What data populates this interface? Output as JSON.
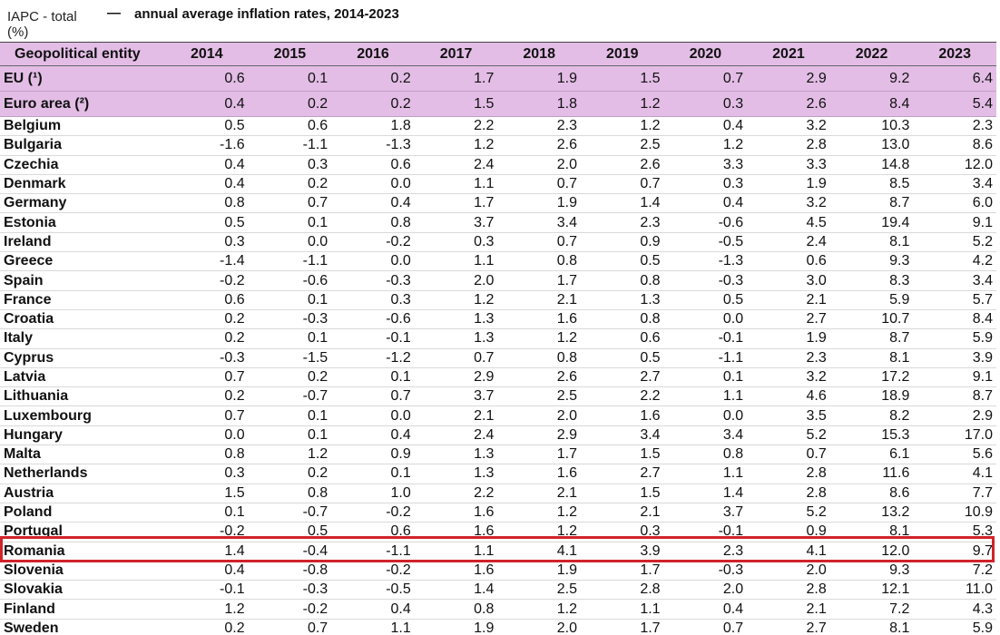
{
  "header": {
    "indicator": "IAPC - total (%)",
    "dash": "—",
    "title": "annual average inflation rates, 2014-2023"
  },
  "table": {
    "entity_header": "Geopolitical  entity",
    "years": [
      "2014",
      "2015",
      "2016",
      "2017",
      "2018",
      "2019",
      "2020",
      "2021",
      "2022",
      "2023"
    ],
    "rows": [
      {
        "name": "EU (¹)",
        "aggregate": true,
        "values": [
          "0.6",
          "0.1",
          "0.2",
          "1.7",
          "1.9",
          "1.5",
          "0.7",
          "2.9",
          "9.2",
          "6.4"
        ]
      },
      {
        "name": "Euro area (²)",
        "aggregate": true,
        "values": [
          "0.4",
          "0.2",
          "0.2",
          "1.5",
          "1.8",
          "1.2",
          "0.3",
          "2.6",
          "8.4",
          "5.4"
        ]
      },
      {
        "name": "Belgium",
        "values": [
          "0.5",
          "0.6",
          "1.8",
          "2.2",
          "2.3",
          "1.2",
          "0.4",
          "3.2",
          "10.3",
          "2.3"
        ]
      },
      {
        "name": "Bulgaria",
        "values": [
          "-1.6",
          "-1.1",
          "-1.3",
          "1.2",
          "2.6",
          "2.5",
          "1.2",
          "2.8",
          "13.0",
          "8.6"
        ]
      },
      {
        "name": "Czechia",
        "values": [
          "0.4",
          "0.3",
          "0.6",
          "2.4",
          "2.0",
          "2.6",
          "3.3",
          "3.3",
          "14.8",
          "12.0"
        ]
      },
      {
        "name": "Denmark",
        "values": [
          "0.4",
          "0.2",
          "0.0",
          "1.1",
          "0.7",
          "0.7",
          "0.3",
          "1.9",
          "8.5",
          "3.4"
        ]
      },
      {
        "name": "Germany",
        "values": [
          "0.8",
          "0.7",
          "0.4",
          "1.7",
          "1.9",
          "1.4",
          "0.4",
          "3.2",
          "8.7",
          "6.0"
        ]
      },
      {
        "name": "Estonia",
        "values": [
          "0.5",
          "0.1",
          "0.8",
          "3.7",
          "3.4",
          "2.3",
          "-0.6",
          "4.5",
          "19.4",
          "9.1"
        ]
      },
      {
        "name": "Ireland",
        "values": [
          "0.3",
          "0.0",
          "-0.2",
          "0.3",
          "0.7",
          "0.9",
          "-0.5",
          "2.4",
          "8.1",
          "5.2"
        ]
      },
      {
        "name": "Greece",
        "values": [
          "-1.4",
          "-1.1",
          "0.0",
          "1.1",
          "0.8",
          "0.5",
          "-1.3",
          "0.6",
          "9.3",
          "4.2"
        ]
      },
      {
        "name": "Spain",
        "values": [
          "-0.2",
          "-0.6",
          "-0.3",
          "2.0",
          "1.7",
          "0.8",
          "-0.3",
          "3.0",
          "8.3",
          "3.4"
        ]
      },
      {
        "name": "France",
        "values": [
          "0.6",
          "0.1",
          "0.3",
          "1.2",
          "2.1",
          "1.3",
          "0.5",
          "2.1",
          "5.9",
          "5.7"
        ]
      },
      {
        "name": "Croatia",
        "values": [
          "0.2",
          "-0.3",
          "-0.6",
          "1.3",
          "1.6",
          "0.8",
          "0.0",
          "2.7",
          "10.7",
          "8.4"
        ]
      },
      {
        "name": "Italy",
        "values": [
          "0.2",
          "0.1",
          "-0.1",
          "1.3",
          "1.2",
          "0.6",
          "-0.1",
          "1.9",
          "8.7",
          "5.9"
        ]
      },
      {
        "name": "Cyprus",
        "values": [
          "-0.3",
          "-1.5",
          "-1.2",
          "0.7",
          "0.8",
          "0.5",
          "-1.1",
          "2.3",
          "8.1",
          "3.9"
        ]
      },
      {
        "name": "Latvia",
        "values": [
          "0.7",
          "0.2",
          "0.1",
          "2.9",
          "2.6",
          "2.7",
          "0.1",
          "3.2",
          "17.2",
          "9.1"
        ]
      },
      {
        "name": "Lithuania",
        "values": [
          "0.2",
          "-0.7",
          "0.7",
          "3.7",
          "2.5",
          "2.2",
          "1.1",
          "4.6",
          "18.9",
          "8.7"
        ]
      },
      {
        "name": "Luxembourg",
        "values": [
          "0.7",
          "0.1",
          "0.0",
          "2.1",
          "2.0",
          "1.6",
          "0.0",
          "3.5",
          "8.2",
          "2.9"
        ]
      },
      {
        "name": "Hungary",
        "values": [
          "0.0",
          "0.1",
          "0.4",
          "2.4",
          "2.9",
          "3.4",
          "3.4",
          "5.2",
          "15.3",
          "17.0"
        ]
      },
      {
        "name": "Malta",
        "values": [
          "0.8",
          "1.2",
          "0.9",
          "1.3",
          "1.7",
          "1.5",
          "0.8",
          "0.7",
          "6.1",
          "5.6"
        ]
      },
      {
        "name": "Netherlands",
        "values": [
          "0.3",
          "0.2",
          "0.1",
          "1.3",
          "1.6",
          "2.7",
          "1.1",
          "2.8",
          "11.6",
          "4.1"
        ]
      },
      {
        "name": "Austria",
        "values": [
          "1.5",
          "0.8",
          "1.0",
          "2.2",
          "2.1",
          "1.5",
          "1.4",
          "2.8",
          "8.6",
          "7.7"
        ]
      },
      {
        "name": "Poland",
        "values": [
          "0.1",
          "-0.7",
          "-0.2",
          "1.6",
          "1.2",
          "2.1",
          "3.7",
          "5.2",
          "13.2",
          "10.9"
        ]
      },
      {
        "name": "Portugal",
        "values": [
          "-0.2",
          "0.5",
          "0.6",
          "1.6",
          "1.2",
          "0.3",
          "-0.1",
          "0.9",
          "8.1",
          "5.3"
        ]
      },
      {
        "name": "Romania",
        "highlight": true,
        "values": [
          "1.4",
          "-0.4",
          "-1.1",
          "1.1",
          "4.1",
          "3.9",
          "2.3",
          "4.1",
          "12.0",
          "9.7"
        ]
      },
      {
        "name": "Slovenia",
        "values": [
          "0.4",
          "-0.8",
          "-0.2",
          "1.6",
          "1.9",
          "1.7",
          "-0.3",
          "2.0",
          "9.3",
          "7.2"
        ]
      },
      {
        "name": "Slovakia",
        "values": [
          "-0.1",
          "-0.3",
          "-0.5",
          "1.4",
          "2.5",
          "2.8",
          "2.0",
          "2.8",
          "12.1",
          "11.0"
        ]
      },
      {
        "name": "Finland",
        "values": [
          "1.2",
          "-0.2",
          "0.4",
          "0.8",
          "1.2",
          "1.1",
          "0.4",
          "2.1",
          "7.2",
          "4.3"
        ]
      },
      {
        "name": "Sweden",
        "values": [
          "0.2",
          "0.7",
          "1.1",
          "1.9",
          "2.0",
          "1.7",
          "0.7",
          "2.7",
          "8.1",
          "5.9"
        ]
      }
    ]
  },
  "colors": {
    "aggregate_background": "#e3bde6",
    "highlight_border": "#d1232a"
  }
}
